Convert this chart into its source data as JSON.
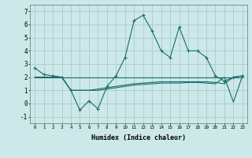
{
  "xlabel": "Humidex (Indice chaleur)",
  "background_color": "#cce8e8",
  "grid_color": "#aacccc",
  "line_color": "#1a6b6b",
  "x_ticks": [
    0,
    1,
    2,
    3,
    4,
    5,
    6,
    7,
    8,
    9,
    10,
    11,
    12,
    13,
    14,
    15,
    16,
    17,
    18,
    19,
    20,
    21,
    22,
    23
  ],
  "ylim": [
    -1.5,
    7.5
  ],
  "xlim": [
    -0.5,
    23.5
  ],
  "yticks": [
    -1,
    0,
    1,
    2,
    3,
    4,
    5,
    6,
    7
  ],
  "series1": [
    2.7,
    2.2,
    2.1,
    2.0,
    1.0,
    -0.5,
    0.2,
    -0.4,
    1.3,
    2.1,
    3.5,
    6.3,
    6.7,
    5.5,
    4.0,
    3.5,
    5.8,
    4.0,
    4.0,
    3.5,
    2.1,
    1.7,
    2.0,
    2.1
  ],
  "series2": [
    2.0,
    2.0,
    2.0,
    2.0,
    2.0,
    2.0,
    2.0,
    2.0,
    2.0,
    2.0,
    2.0,
    2.0,
    2.0,
    2.0,
    2.0,
    2.0,
    2.0,
    2.0,
    2.0,
    2.0,
    2.0,
    2.0,
    2.0,
    2.0
  ],
  "series3": [
    2.0,
    2.0,
    2.0,
    2.0,
    1.0,
    1.0,
    1.0,
    1.1,
    1.2,
    1.3,
    1.4,
    1.5,
    1.55,
    1.6,
    1.65,
    1.65,
    1.65,
    1.65,
    1.65,
    1.65,
    1.6,
    1.5,
    2.0,
    2.1
  ],
  "series4": [
    2.0,
    2.0,
    2.0,
    2.0,
    1.0,
    1.0,
    1.0,
    1.0,
    1.1,
    1.2,
    1.3,
    1.4,
    1.45,
    1.5,
    1.55,
    1.55,
    1.55,
    1.6,
    1.6,
    1.55,
    1.5,
    2.0,
    0.1,
    2.1
  ]
}
